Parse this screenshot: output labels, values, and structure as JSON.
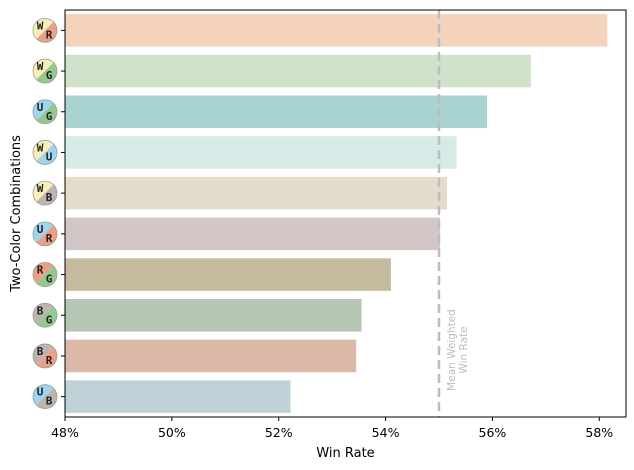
{
  "chart_data": {
    "type": "bar",
    "orientation": "horizontal",
    "xlabel": "Win Rate",
    "ylabel": "Two-Color Combinations",
    "xlim": [
      48,
      58.5
    ],
    "x_ticks": [
      48,
      50,
      52,
      54,
      56,
      58
    ],
    "x_tick_suffix": "%",
    "grid": false,
    "reference_line": {
      "value": 55.0,
      "label_line1": "Mean Weighted",
      "label_line2": "Win Rate",
      "color": "#bdbdbd"
    },
    "categories": [
      {
        "c1": "W",
        "c2": "R",
        "value": 58.15,
        "color": "#f4d3bd"
      },
      {
        "c1": "W",
        "c2": "G",
        "value": 56.72,
        "color": "#d0e2c9"
      },
      {
        "c1": "U",
        "c2": "G",
        "value": 55.9,
        "color": "#a8d3d0"
      },
      {
        "c1": "W",
        "c2": "U",
        "value": 55.33,
        "color": "#d6ebe7"
      },
      {
        "c1": "W",
        "c2": "B",
        "value": 55.15,
        "color": "#e3dccb"
      },
      {
        "c1": "U",
        "c2": "R",
        "value": 55.02,
        "color": "#d2c6c7"
      },
      {
        "c1": "R",
        "c2": "G",
        "value": 54.1,
        "color": "#c6ba9e"
      },
      {
        "c1": "B",
        "c2": "G",
        "value": 53.55,
        "color": "#b5c6b5"
      },
      {
        "c1": "B",
        "c2": "R",
        "value": 53.45,
        "color": "#dcb8a9"
      },
      {
        "c1": "U",
        "c2": "B",
        "value": 52.22,
        "color": "#bdd1d7"
      }
    ],
    "mana_colors": {
      "W": "#f8efb8",
      "U": "#9fd6ee",
      "B": "#bdb4b0",
      "R": "#ee9e86",
      "G": "#93c98f"
    }
  }
}
